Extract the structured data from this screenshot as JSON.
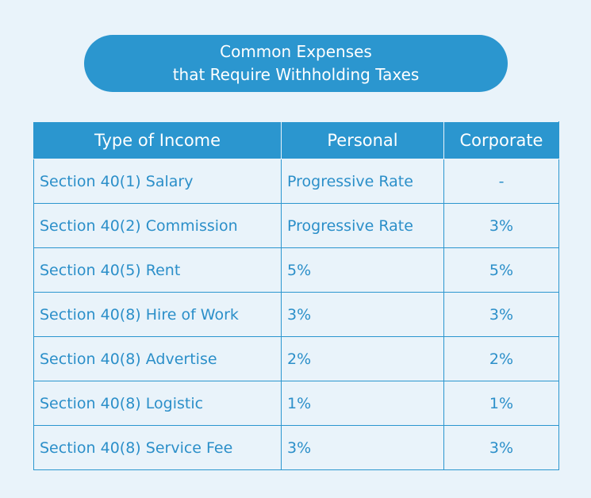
{
  "title": {
    "line1": "Common Expenses",
    "line2": "that Require Withholding Taxes"
  },
  "colors": {
    "accent": "#2b96cf",
    "background": "#e9f3fa"
  },
  "table": {
    "headers": [
      "Type of Income",
      "Personal",
      "Corporate"
    ],
    "rows": [
      [
        "Section 40(1) Salary",
        "Progressive Rate",
        "-"
      ],
      [
        "Section 40(2) Commission",
        "Progressive Rate",
        "3%"
      ],
      [
        "Section 40(5) Rent",
        "5%",
        "5%"
      ],
      [
        "Section 40(8) Hire of Work",
        "3%",
        "3%"
      ],
      [
        "Section 40(8) Advertise",
        "2%",
        "2%"
      ],
      [
        "Section 40(8) Logistic",
        "1%",
        "1%"
      ],
      [
        "Section 40(8) Service Fee",
        "3%",
        "3%"
      ]
    ]
  }
}
